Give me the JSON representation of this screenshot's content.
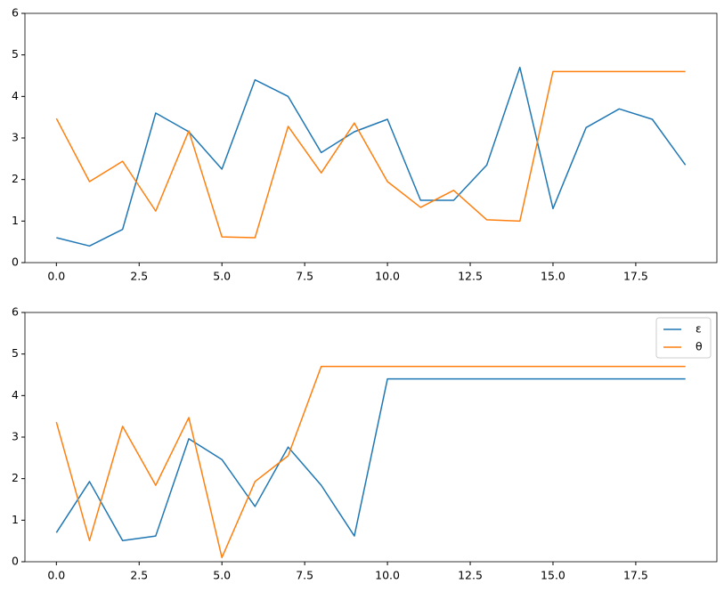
{
  "chart_data": [
    {
      "type": "line",
      "x": [
        0,
        1,
        2,
        3,
        4,
        5,
        6,
        7,
        8,
        9,
        10,
        11,
        12,
        13,
        14,
        15,
        16,
        17,
        18,
        19
      ],
      "series": [
        {
          "color": "#1f77b4",
          "values": [
            0.6,
            0.4,
            0.8,
            3.6,
            3.15,
            2.25,
            4.4,
            4.0,
            2.65,
            3.15,
            3.45,
            1.5,
            1.5,
            2.35,
            4.7,
            1.3,
            3.25,
            3.7,
            3.45,
            2.35
          ]
        },
        {
          "color": "#ff7f0e",
          "values": [
            3.47,
            1.95,
            2.44,
            1.24,
            3.17,
            0.62,
            0.6,
            3.28,
            2.16,
            3.36,
            1.95,
            1.33,
            1.74,
            1.03,
            1.0,
            4.6,
            4.6,
            4.6,
            4.6,
            4.6
          ]
        }
      ],
      "xlim": [
        -0.95,
        19.95
      ],
      "ylim": [
        0,
        6
      ],
      "xticks": [
        {
          "value": 0,
          "label": "0.0"
        },
        {
          "value": 2.5,
          "label": "2.5"
        },
        {
          "value": 5,
          "label": "5.0"
        },
        {
          "value": 7.5,
          "label": "7.5"
        },
        {
          "value": 10,
          "label": "10.0"
        },
        {
          "value": 12.5,
          "label": "12.5"
        },
        {
          "value": 15,
          "label": "15.0"
        },
        {
          "value": 17.5,
          "label": "17.5"
        }
      ],
      "yticks": [
        0,
        1,
        2,
        3,
        4,
        5,
        6
      ]
    },
    {
      "type": "line",
      "x": [
        0,
        1,
        2,
        3,
        4,
        5,
        6,
        7,
        8,
        9,
        10,
        11,
        12,
        13,
        14,
        15,
        16,
        17,
        18,
        19
      ],
      "series": [
        {
          "name": "ε",
          "color": "#1f77b4",
          "values": [
            0.7,
            1.93,
            0.51,
            0.62,
            2.96,
            2.46,
            1.33,
            2.76,
            1.84,
            0.62,
            4.4,
            4.4,
            4.4,
            4.4,
            4.4,
            4.4,
            4.4,
            4.4,
            4.4,
            4.4
          ]
        },
        {
          "name": "θ",
          "color": "#ff7f0e",
          "values": [
            3.36,
            0.51,
            3.26,
            1.84,
            3.47,
            0.1,
            1.93,
            2.55,
            4.7,
            4.7,
            4.7,
            4.7,
            4.7,
            4.7,
            4.7,
            4.7,
            4.7,
            4.7,
            4.7,
            4.7
          ]
        }
      ],
      "xlim": [
        -0.95,
        19.95
      ],
      "ylim": [
        0,
        6
      ],
      "xticks": [
        {
          "value": 0,
          "label": "0.0"
        },
        {
          "value": 2.5,
          "label": "2.5"
        },
        {
          "value": 5,
          "label": "5.0"
        },
        {
          "value": 7.5,
          "label": "7.5"
        },
        {
          "value": 10,
          "label": "10.0"
        },
        {
          "value": 12.5,
          "label": "12.5"
        },
        {
          "value": 15,
          "label": "15.0"
        },
        {
          "value": 17.5,
          "label": "17.5"
        }
      ],
      "yticks": [
        0,
        1,
        2,
        3,
        4,
        5,
        6
      ],
      "legend": "upper right"
    }
  ]
}
